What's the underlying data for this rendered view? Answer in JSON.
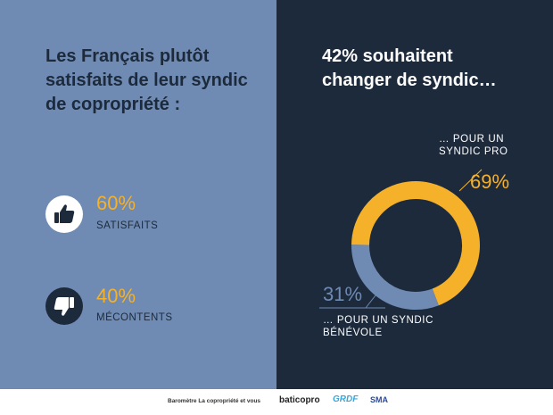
{
  "left": {
    "title": "Les Français plutôt satisfaits de leur syndic de copropriété :",
    "stats": [
      {
        "percent": "60%",
        "label": "SATISFAITS",
        "icon": "thumbs-up-icon"
      },
      {
        "percent": "40%",
        "label": "MÉCONTENTS",
        "icon": "thumbs-down-icon"
      }
    ]
  },
  "right": {
    "title": "42% souhaitent changer de syndic…",
    "pro_label": "… POUR UN SYNDIC PRO",
    "benevole_label": "… POUR UN SYNDIC BÉNÉVOLE"
  },
  "chart_data": {
    "type": "pie",
    "style": "donut",
    "categories": [
      "… POUR UN SYNDIC PRO",
      "… POUR UN SYNDIC BÉNÉVOLE"
    ],
    "values": [
      69,
      31
    ],
    "value_labels": [
      "69%",
      "31%"
    ],
    "colors": [
      "#f5b12a",
      "#6f8bb3"
    ]
  },
  "footer": {
    "caption": "Baromètre La copropriété et vous",
    "logos": [
      "baticopro",
      "GRDF",
      "SMA"
    ]
  },
  "colors": {
    "left_bg": "#6f8bb3",
    "right_bg": "#1c2a3c",
    "accent": "#f5b12a",
    "text_dark": "#1c2a3c"
  }
}
